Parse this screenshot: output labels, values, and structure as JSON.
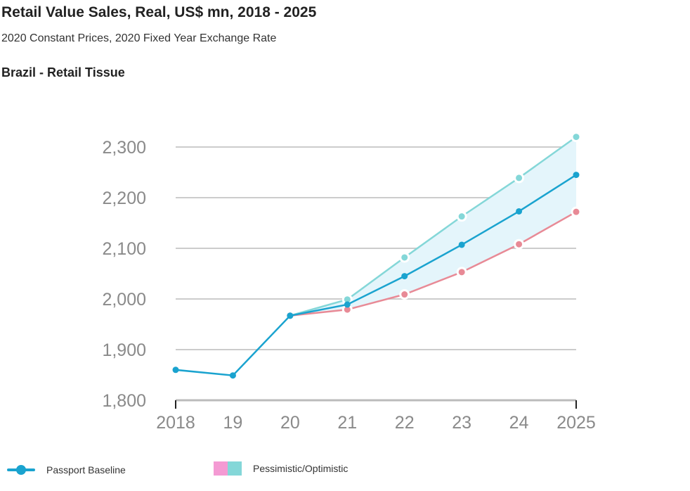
{
  "header": {
    "title": "Retail Value Sales, Real, US$ mn, 2018 - 2025",
    "subtitle": "2020 Constant Prices, 2020 Fixed Year Exchange Rate",
    "section": "Brazil - Retail Tissue"
  },
  "legend": {
    "baseline_label": "Passport Baseline",
    "range_label": "Pessimistic/Optimistic"
  },
  "colors": {
    "baseline": "#1aa3cf",
    "optimistic": "#84d7d8",
    "pessimistic": "#e88a96",
    "band": "#e4f5fb",
    "swatch_pink": "#f49ad3",
    "swatch_teal": "#84d7d8",
    "grid": "#cccccc",
    "axis": "#222222"
  },
  "chart_data": {
    "type": "line",
    "title": "Retail Value Sales, Real, US$ mn, 2018 - 2025",
    "subtitle": "2020 Constant Prices, 2020 Fixed Year Exchange Rate",
    "x": [
      2018,
      2019,
      2020,
      2021,
      2022,
      2023,
      2024,
      2025
    ],
    "x_tick_labels": [
      "2018",
      "19",
      "20",
      "21",
      "22",
      "23",
      "24",
      "2025"
    ],
    "y_tick_values": [
      1800,
      1900,
      2000,
      2100,
      2200,
      2300
    ],
    "y_tick_labels": [
      "1,800",
      "1,900",
      "2,000",
      "2,100",
      "2,200",
      "2,300"
    ],
    "ylim": [
      1800,
      2300
    ],
    "grid": true,
    "legend_position": "bottom",
    "series": [
      {
        "name": "Passport Baseline",
        "values": [
          1860,
          1849,
          1967,
          1989,
          2045,
          2107,
          2173,
          2245
        ]
      },
      {
        "name": "Optimistic",
        "values": [
          null,
          null,
          1967,
          1999,
          2082,
          2163,
          2239,
          2320
        ]
      },
      {
        "name": "Pessimistic",
        "values": [
          null,
          null,
          1967,
          1979,
          2009,
          2053,
          2108,
          2172
        ]
      }
    ]
  }
}
